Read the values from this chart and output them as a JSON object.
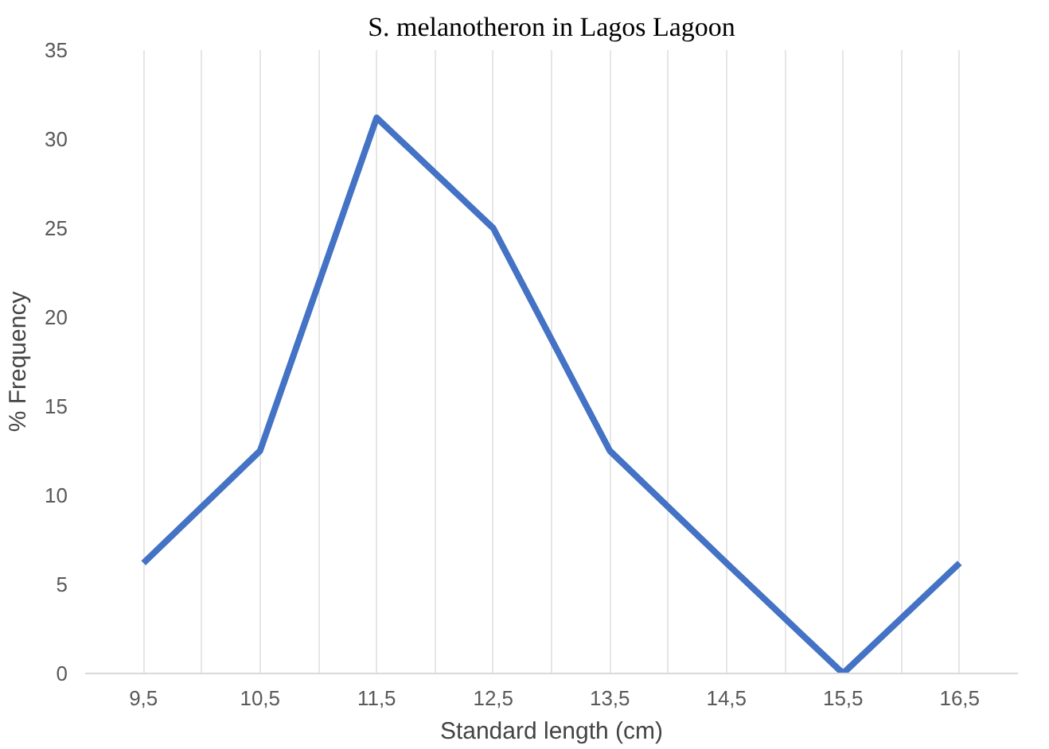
{
  "chart_data": {
    "type": "line",
    "title": "S. melanotheron in Lagos Lagoon",
    "xlabel": "Standard length (cm)",
    "ylabel": "% Frequency",
    "categories": [
      "9,5",
      "10,5",
      "11,5",
      "12,5",
      "13,5",
      "14,5",
      "15,5",
      "16,5"
    ],
    "series": [
      {
        "color": "#4472c4",
        "values": [
          6.2,
          12.5,
          31.2,
          25,
          12.5,
          6.2,
          0,
          6.2
        ]
      }
    ],
    "ylim": [
      0,
      35
    ],
    "yticks": [
      0,
      5,
      10,
      15,
      20,
      25,
      30,
      35
    ],
    "grid": "x",
    "marker": "none",
    "line_style": "solid"
  }
}
